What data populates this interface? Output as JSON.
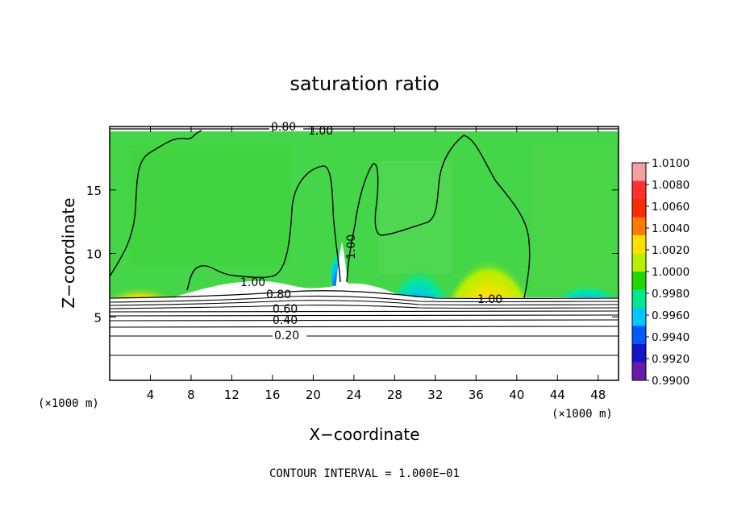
{
  "chart_data": {
    "type": "heatmap",
    "title": "saturation ratio",
    "xlabel": "X−coordinate",
    "ylabel": "Z−coordinate",
    "x_unit_left": "(×1000 m)",
    "x_unit_right": "(×1000 m)",
    "footer": "CONTOUR INTERVAL = 1.000E−01",
    "xlim": [
      0,
      50
    ],
    "ylim": [
      0,
      20
    ],
    "xticks": [
      "4",
      "8",
      "12",
      "16",
      "20",
      "24",
      "28",
      "32",
      "36",
      "40",
      "44",
      "48"
    ],
    "xtick_values": [
      4,
      8,
      12,
      16,
      20,
      24,
      28,
      32,
      36,
      40,
      44,
      48
    ],
    "yticks": [
      "5",
      "10",
      "15"
    ],
    "ytick_values": [
      5,
      10,
      15
    ],
    "colorbar": {
      "ticks": [
        "1.0100",
        "1.0080",
        "1.0060",
        "1.0040",
        "1.0020",
        "1.0000",
        "0.9980",
        "0.9960",
        "0.9940",
        "0.9920",
        "0.9900"
      ],
      "colors": [
        "#f2a0a0",
        "#ff3030",
        "#ff2a00",
        "#ff7a00",
        "#ffe000",
        "#b8f000",
        "#22d800",
        "#00e890",
        "#00c8ff",
        "#0058ff",
        "#1414c8",
        "#6a1aa8"
      ]
    },
    "contour_labels": [
      "0.80",
      "1.00",
      "1.00",
      "1.00",
      "0.80",
      "0.60",
      "0.40",
      "0.20",
      "1.00"
    ],
    "colors": {
      "background_field": "#44d648",
      "high_supersat": "#ff3020",
      "low_subsat": "#1a2acc",
      "contour": "#000000"
    }
  }
}
